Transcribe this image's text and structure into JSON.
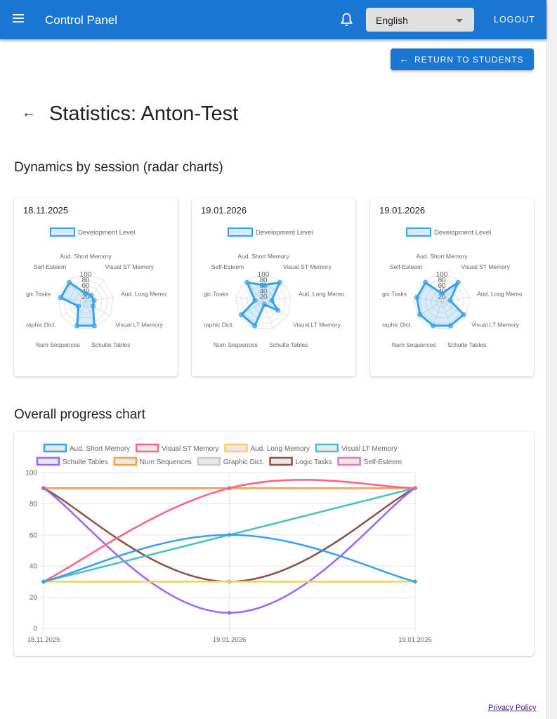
{
  "appbar": {
    "title": "Control Panel",
    "language": "English",
    "logout": "LOGOUT",
    "menu_icon": "hamburger-icon",
    "bell_icon": "bell-icon"
  },
  "return_button": "RETURN TO STUDENTS",
  "page_title": "Statistics: Anton-Test",
  "radar_section_title": "Dynamics by session (radar charts)",
  "progress_section_title": "Overall progress chart",
  "footer": {
    "privacy": "Privacy Policy"
  },
  "colors": {
    "primary": "#1976d2",
    "radar": "#36a2eb"
  },
  "chart_data": [
    {
      "type": "radar",
      "title": "18.11.2025",
      "legend": "Development Level",
      "axes": [
        "Aud. Short Memory",
        "Visual ST Memory",
        "Aud. Long Memo",
        "Visual LT Memory",
        "Schulte Tables",
        "Num Sequences",
        "raphic Dict.",
        "gic Tasks",
        "Self-Esteem"
      ],
      "ticks": [
        "20",
        "40",
        "60",
        "80",
        "100"
      ],
      "values": [
        30,
        30,
        30,
        30,
        90,
        90,
        30,
        90,
        90
      ],
      "range": [
        0,
        100
      ]
    },
    {
      "type": "radar",
      "title": "19.01.2026",
      "legend": "Development Level",
      "axes": [
        "Aud. Short Memory",
        "Visual ST Memory",
        "Aud. Long Memo",
        "Visual LT Memory",
        "Schulte Tables",
        "Num Sequences",
        "raphic Dict.",
        "gic Tasks",
        "Self-Esteem"
      ],
      "ticks": [
        "20",
        "40",
        "60",
        "80",
        "100"
      ],
      "values": [
        60,
        90,
        30,
        60,
        10,
        90,
        90,
        30,
        90
      ],
      "range": [
        0,
        100
      ]
    },
    {
      "type": "radar",
      "title": "19.01.2026",
      "legend": "Development Level",
      "axes": [
        "Aud. Short Memory",
        "Visual ST Memory",
        "Aud. Long Memo",
        "Visual LT Memory",
        "Schulte Tables",
        "Num Sequences",
        "raphic Dict.",
        "gic Tasks",
        "Self-Esteem"
      ],
      "ticks": [
        "20",
        "40",
        "60",
        "80",
        "100"
      ],
      "values": [
        30,
        90,
        30,
        90,
        90,
        90,
        90,
        90,
        90
      ],
      "range": [
        0,
        100
      ]
    },
    {
      "type": "line",
      "categories": [
        "18.11.2025",
        "19.01.2026",
        "19.01.2026"
      ],
      "ylim": [
        0,
        100
      ],
      "yticks": [
        0,
        20,
        40,
        60,
        80,
        100
      ],
      "grid": true,
      "legend_position": "top",
      "series": [
        {
          "name": "Aud. Short Memory",
          "color": "#36a2eb",
          "values": [
            30,
            60,
            30
          ]
        },
        {
          "name": "Visual ST Memory",
          "color": "#ff6384",
          "values": [
            30,
            90,
            90
          ]
        },
        {
          "name": "Aud. Long Memory",
          "color": "#ffcd56",
          "values": [
            30,
            30,
            30
          ]
        },
        {
          "name": "Visual LT Memory",
          "color": "#4bc0c0",
          "values": [
            30,
            60,
            90
          ]
        },
        {
          "name": "Schulte Tables",
          "color": "#9966ff",
          "values": [
            90,
            10,
            90
          ]
        },
        {
          "name": "Num Sequences",
          "color": "#ff9f40",
          "values": [
            90,
            90,
            90
          ]
        },
        {
          "name": "Graphic Dict.",
          "color": "#c9cbcf",
          "values": [
            30,
            90,
            90
          ]
        },
        {
          "name": "Logic Tasks",
          "color": "#8c5044",
          "values": [
            90,
            30,
            90
          ]
        },
        {
          "name": "Self-Esteem",
          "color": "#e377c2",
          "values": [
            90,
            90,
            90
          ]
        }
      ]
    }
  ]
}
